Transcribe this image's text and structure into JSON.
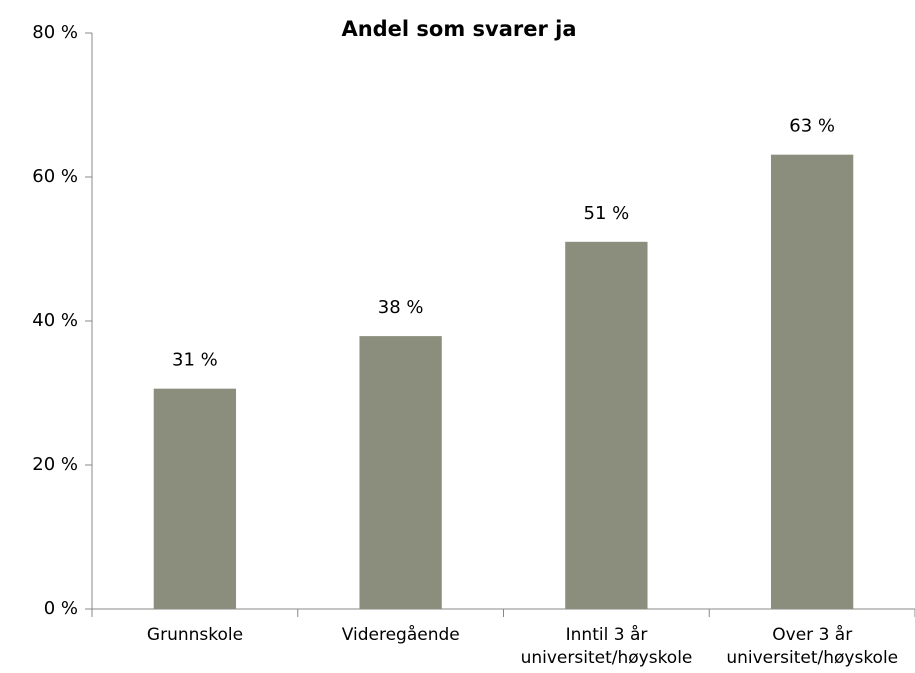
{
  "chart_data": {
    "type": "bar",
    "title": "Andel som svarer ja",
    "categories": [
      "Grunnskole",
      "Videregående",
      "Inntil 3 år\nuniversitet/høyskole",
      "Over 3 år\nuniversitet/høyskole"
    ],
    "values": [
      30.6,
      37.9,
      51,
      63.1
    ],
    "value_labels": [
      "31 %",
      "38 %",
      "51 %",
      "63 %"
    ],
    "color": "#8b8d7d",
    "ylim": [
      0,
      80
    ],
    "yticks": [
      {
        "value": 0,
        "label": "0 %"
      },
      {
        "value": 20,
        "label": "20 %"
      },
      {
        "value": 40,
        "label": "40 %"
      },
      {
        "value": 60,
        "label": "60 %"
      },
      {
        "value": 80,
        "label": "80 %"
      }
    ],
    "grid": false
  }
}
